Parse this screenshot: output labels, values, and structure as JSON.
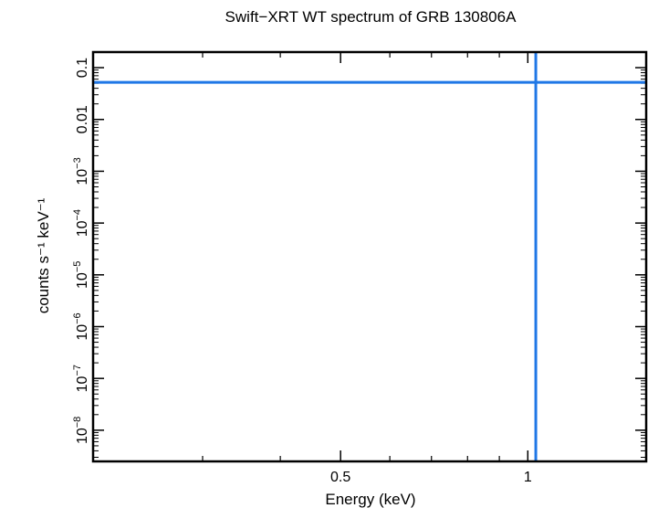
{
  "chart_data": {
    "type": "line",
    "title": "Swift−XRT WT spectrum of GRB 130806A",
    "xlabel": "Energy (keV)",
    "ylabel": "counts s⁻¹ keV⁻¹",
    "xscale": "log",
    "yscale": "log",
    "xlim": [
      0.2,
      1.55
    ],
    "ylim": [
      2.5e-09,
      0.2
    ],
    "xticks": [
      {
        "value": 0.5,
        "label": "0.5"
      },
      {
        "value": 1,
        "label": "1"
      }
    ],
    "xminor": [
      0.3,
      0.4,
      0.6,
      0.7,
      0.8,
      0.9
    ],
    "yticks": [
      {
        "value": 0.1,
        "base": "0.1",
        "exp": ""
      },
      {
        "value": 0.01,
        "base": "0.01",
        "exp": ""
      },
      {
        "value": 0.001,
        "base": "10",
        "exp": "−3"
      },
      {
        "value": 0.0001,
        "base": "10",
        "exp": "−4"
      },
      {
        "value": 1e-05,
        "base": "10",
        "exp": "−5"
      },
      {
        "value": 1e-06,
        "base": "10",
        "exp": "−6"
      },
      {
        "value": 1e-07,
        "base": "10",
        "exp": "−7"
      },
      {
        "value": 1e-08,
        "base": "10",
        "exp": "−8"
      }
    ],
    "series": [
      {
        "orientation": "horizontal",
        "y": 0.052
      },
      {
        "orientation": "vertical",
        "x": 1.03
      }
    ],
    "line_color": "#1f77e6",
    "grid": false
  }
}
